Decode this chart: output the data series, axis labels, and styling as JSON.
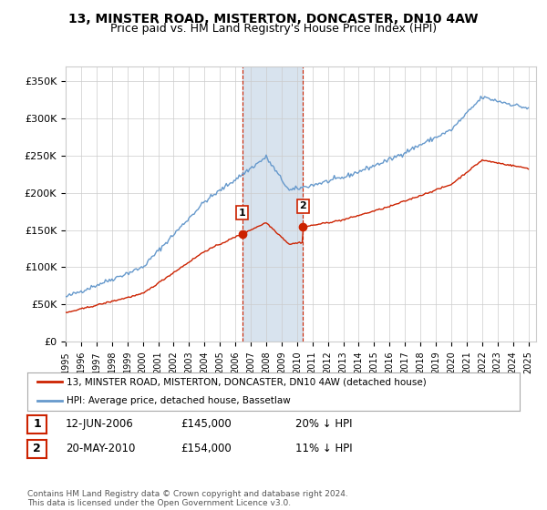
{
  "title": "13, MINSTER ROAD, MISTERTON, DONCASTER, DN10 4AW",
  "subtitle": "Price paid vs. HM Land Registry's House Price Index (HPI)",
  "ylabel_ticks": [
    "£0",
    "£50K",
    "£100K",
    "£150K",
    "£200K",
    "£250K",
    "£300K",
    "£350K"
  ],
  "ytick_values": [
    0,
    50000,
    100000,
    150000,
    200000,
    250000,
    300000,
    350000
  ],
  "ylim": [
    0,
    370000
  ],
  "xlim_start": 1995.0,
  "xlim_end": 2025.5,
  "hpi_color": "#6699cc",
  "price_color": "#cc2200",
  "shading_color": "#c8d8e8",
  "marker1_date": 2006.45,
  "marker2_date": 2010.38,
  "marker1_price": 145000,
  "marker2_price": 154000,
  "legend_label1": "13, MINSTER ROAD, MISTERTON, DONCASTER, DN10 4AW (detached house)",
  "legend_label2": "HPI: Average price, detached house, Bassetlaw",
  "table_row1": [
    "1",
    "12-JUN-2006",
    "£145,000",
    "20% ↓ HPI"
  ],
  "table_row2": [
    "2",
    "20-MAY-2010",
    "£154,000",
    "11% ↓ HPI"
  ],
  "footer": "Contains HM Land Registry data © Crown copyright and database right 2024.\nThis data is licensed under the Open Government Licence v3.0.",
  "title_fontsize": 10,
  "subtitle_fontsize": 9,
  "axis_fontsize": 8,
  "background_color": "#ffffff",
  "grid_color": "#cccccc"
}
